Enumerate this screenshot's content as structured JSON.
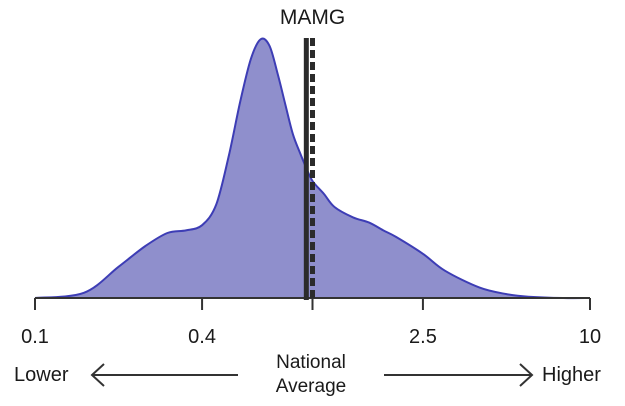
{
  "chart_data": {
    "type": "area",
    "title": "MAMG",
    "x_scale": "log",
    "xlim": [
      0.1,
      10
    ],
    "ylim": [
      0,
      1
    ],
    "ticks": [
      {
        "value": 0.1,
        "label": "0.1"
      },
      {
        "value": 0.4,
        "label": "0.4"
      },
      {
        "value": 1,
        "label": ""
      },
      {
        "value": 2.5,
        "label": "2.5"
      },
      {
        "value": 10,
        "label": "10"
      }
    ],
    "density": {
      "x": [
        0.1,
        0.15,
        0.2,
        0.25,
        0.3,
        0.35,
        0.4,
        0.45,
        0.5,
        0.55,
        0.6,
        0.65,
        0.7,
        0.75,
        0.8,
        0.85,
        0.9,
        0.95,
        1.0,
        1.1,
        1.2,
        1.4,
        1.6,
        1.8,
        2.0,
        2.5,
        3.0,
        4.0,
        5.0,
        6.0,
        8.0,
        10.0
      ],
      "y": [
        0.0,
        0.02,
        0.12,
        0.2,
        0.25,
        0.26,
        0.28,
        0.36,
        0.55,
        0.76,
        0.92,
        0.995,
        0.97,
        0.86,
        0.74,
        0.63,
        0.56,
        0.5,
        0.45,
        0.4,
        0.35,
        0.31,
        0.29,
        0.26,
        0.235,
        0.17,
        0.105,
        0.04,
        0.015,
        0.005,
        0.0,
        0.0
      ]
    },
    "reference_lines": [
      {
        "x": 0.95,
        "style": "solid"
      },
      {
        "x": 1.0,
        "style": "dashed"
      }
    ],
    "fill_color": "#8f8fcc",
    "stroke_color": "#3d3db5",
    "axis_color": "#333333",
    "line_color": "#2b2b2b"
  },
  "legend": {
    "lower": "Lower",
    "higher": "Higher",
    "center_line1": "National",
    "center_line2": "Average"
  }
}
